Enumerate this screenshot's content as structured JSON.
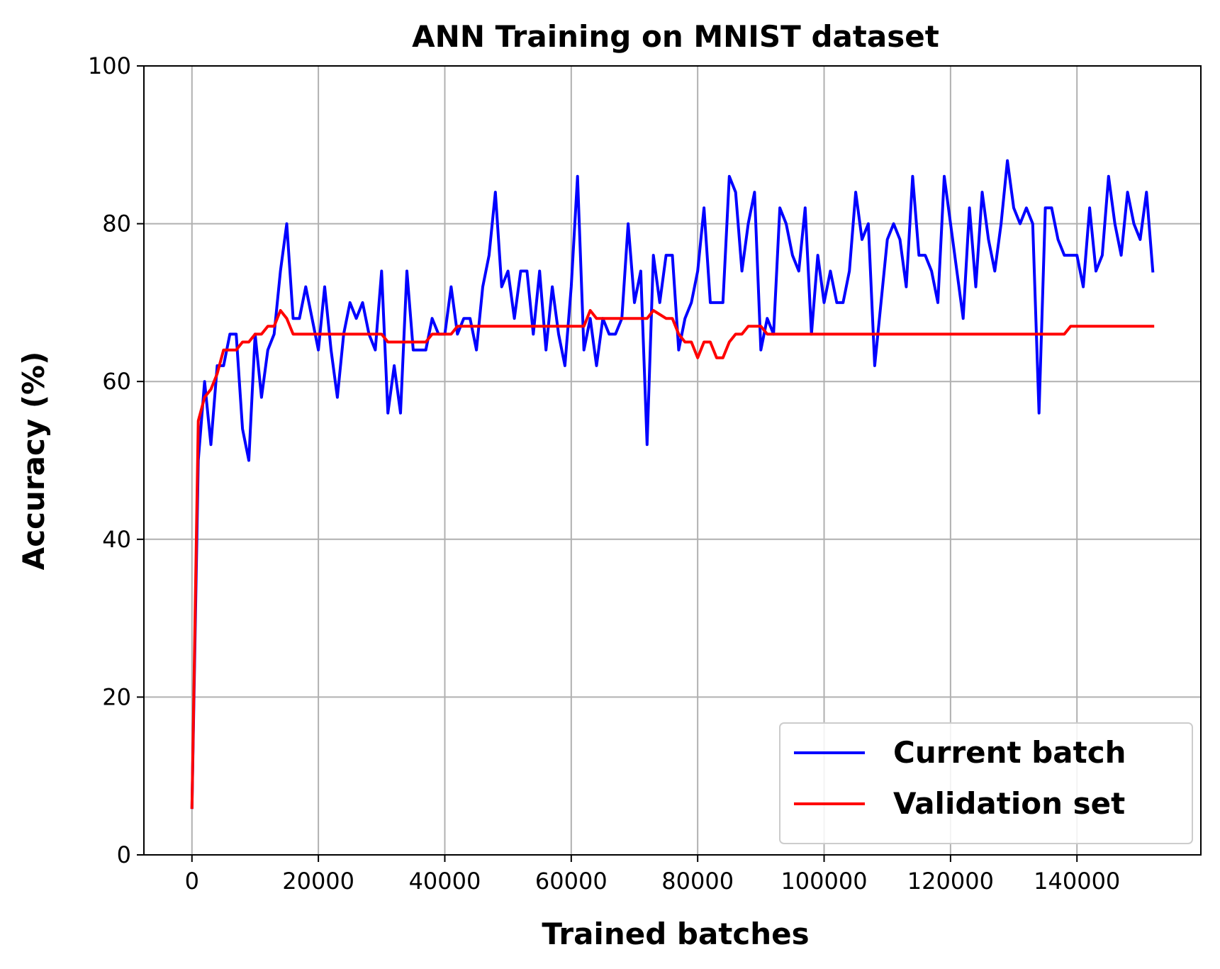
{
  "chart_data": {
    "type": "line",
    "title": "ANN Training on MNIST dataset",
    "xlabel": "Trained batches",
    "ylabel": "Accuracy (%)",
    "xlim": [
      -7600,
      159600
    ],
    "ylim": [
      0,
      100
    ],
    "xticks": [
      0,
      20000,
      40000,
      60000,
      80000,
      100000,
      120000,
      140000
    ],
    "yticks": [
      0,
      20,
      40,
      60,
      80,
      100
    ],
    "grid": true,
    "legend_position": "bottom-right",
    "series": [
      {
        "name": "Current batch",
        "color": "#0000ff",
        "x": [
          0,
          1000,
          2000,
          3000,
          4000,
          5000,
          6000,
          7000,
          8000,
          9000,
          10000,
          11000,
          12000,
          13000,
          14000,
          15000,
          16000,
          17000,
          18000,
          19000,
          20000,
          21000,
          22000,
          23000,
          24000,
          25000,
          26000,
          27000,
          28000,
          29000,
          30000,
          31000,
          32000,
          33000,
          34000,
          35000,
          36000,
          37000,
          38000,
          39000,
          40000,
          41000,
          42000,
          43000,
          44000,
          45000,
          46000,
          47000,
          48000,
          49000,
          50000,
          51000,
          52000,
          53000,
          54000,
          55000,
          56000,
          57000,
          58000,
          59000,
          60000,
          61000,
          62000,
          63000,
          64000,
          65000,
          66000,
          67000,
          68000,
          69000,
          70000,
          71000,
          72000,
          73000,
          74000,
          75000,
          76000,
          77000,
          78000,
          79000,
          80000,
          81000,
          82000,
          83000,
          84000,
          85000,
          86000,
          87000,
          88000,
          89000,
          90000,
          91000,
          92000,
          93000,
          94000,
          95000,
          96000,
          97000,
          98000,
          99000,
          100000,
          101000,
          102000,
          103000,
          104000,
          105000,
          106000,
          107000,
          108000,
          109000,
          110000,
          111000,
          112000,
          113000,
          114000,
          115000,
          116000,
          117000,
          118000,
          119000,
          120000,
          121000,
          122000,
          123000,
          124000,
          125000,
          126000,
          127000,
          128000,
          129000,
          130000,
          131000,
          132000,
          133000,
          134000,
          135000,
          136000,
          137000,
          138000,
          139000,
          140000,
          141000,
          142000,
          143000,
          144000,
          145000,
          146000,
          147000,
          148000,
          149000,
          150000,
          151000,
          152000
        ],
        "y": [
          6,
          50,
          60,
          52,
          62,
          62,
          66,
          66,
          54,
          50,
          66,
          58,
          64,
          66,
          74,
          80,
          68,
          68,
          72,
          68,
          64,
          72,
          64,
          58,
          66,
          70,
          68,
          70,
          66,
          64,
          74,
          56,
          62,
          56,
          74,
          64,
          64,
          64,
          68,
          66,
          66,
          72,
          66,
          68,
          68,
          64,
          72,
          76,
          84,
          72,
          74,
          68,
          74,
          74,
          66,
          74,
          64,
          72,
          66,
          62,
          72,
          86,
          64,
          68,
          62,
          68,
          66,
          66,
          68,
          80,
          70,
          74,
          52,
          76,
          70,
          76,
          76,
          64,
          68,
          70,
          74,
          82,
          70,
          70,
          70,
          86,
          84,
          74,
          80,
          84,
          64,
          68,
          66,
          82,
          80,
          76,
          74,
          82,
          66,
          76,
          70,
          74,
          70,
          70,
          74,
          84,
          78,
          80,
          62,
          70,
          78,
          80,
          78,
          72,
          86,
          76,
          76,
          74,
          70,
          86,
          80,
          74,
          68,
          82,
          72,
          84,
          78,
          74,
          80,
          88,
          82,
          80,
          82,
          80,
          56,
          82,
          82,
          78,
          76,
          76,
          76,
          72,
          82,
          74,
          76,
          86,
          80,
          76,
          84,
          80,
          78,
          84,
          74
        ]
      },
      {
        "name": "Validation set",
        "color": "#ff0000",
        "x": [
          0,
          1000,
          2000,
          3000,
          4000,
          5000,
          6000,
          7000,
          8000,
          9000,
          10000,
          11000,
          12000,
          13000,
          14000,
          15000,
          16000,
          17000,
          18000,
          30000,
          31000,
          37000,
          38000,
          41000,
          42000,
          62000,
          63000,
          64000,
          72000,
          73000,
          75000,
          76000,
          77000,
          78000,
          79000,
          80000,
          81000,
          82000,
          83000,
          84000,
          85000,
          86000,
          87000,
          88000,
          89000,
          90000,
          91000,
          92000,
          93000,
          137000,
          138000,
          139000,
          152000
        ],
        "y": [
          6,
          55,
          58,
          59,
          61,
          64,
          64,
          64,
          65,
          65,
          66,
          66,
          67,
          67,
          69,
          68,
          66,
          66,
          66,
          66,
          65,
          65,
          66,
          66,
          67,
          67,
          69,
          68,
          68,
          69,
          68,
          68,
          66,
          65,
          65,
          63,
          65,
          65,
          63,
          63,
          65,
          66,
          66,
          67,
          67,
          67,
          66,
          66,
          66,
          66,
          66,
          67,
          67
        ]
      }
    ]
  }
}
